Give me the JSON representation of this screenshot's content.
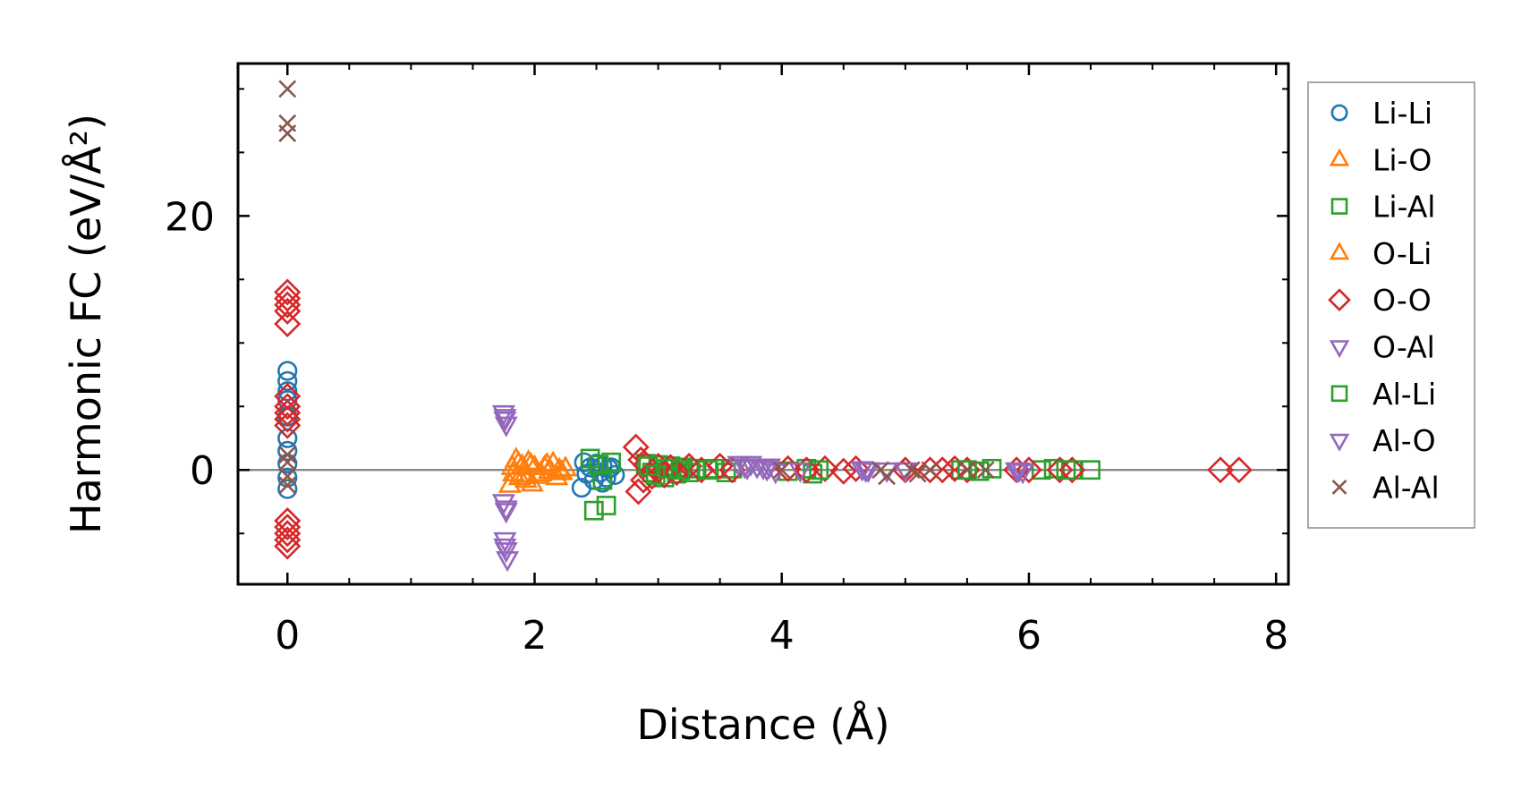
{
  "chart_data": {
    "type": "scatter",
    "xlabel": "Distance (Å)",
    "ylabel": "Harmonic FC (eV/Å²)",
    "xlim": [
      -0.4,
      8.1
    ],
    "ylim": [
      -9,
      32
    ],
    "x_ticks": [
      0,
      2,
      4,
      6,
      8
    ],
    "x_tick_labels": [
      "0",
      "2",
      "4",
      "6",
      "8"
    ],
    "y_ticks": [
      0,
      20
    ],
    "y_tick_labels": [
      "0",
      "20"
    ],
    "x_minor_step": 0.5,
    "y_minor_step": 5,
    "zero_line": true,
    "grid": false,
    "legend_position": "outside-right",
    "series": [
      {
        "name": "Li-Li",
        "marker": "circle",
        "color": "#1f77b4",
        "points": [
          [
            0,
            7.8
          ],
          [
            0,
            7.0
          ],
          [
            0,
            6.2
          ],
          [
            0,
            5.5
          ],
          [
            0,
            4.2
          ],
          [
            0,
            2.5
          ],
          [
            0,
            1.5
          ],
          [
            0,
            0.5
          ],
          [
            0,
            -0.6
          ],
          [
            0,
            -1.5
          ],
          [
            2.38,
            -1.4
          ],
          [
            2.4,
            0.6
          ],
          [
            2.42,
            -0.3
          ],
          [
            2.45,
            0.2
          ],
          [
            2.48,
            -0.8
          ],
          [
            2.5,
            0.5
          ],
          [
            2.53,
            -0.2
          ],
          [
            2.55,
            0.3
          ],
          [
            2.58,
            -0.6
          ],
          [
            2.6,
            0.1
          ],
          [
            2.62,
            0.2
          ],
          [
            2.65,
            -0.4
          ],
          [
            2.55,
            -1.0
          ]
        ]
      },
      {
        "name": "Li-O",
        "marker": "triangle-up",
        "color": "#ff7f0e",
        "points": [
          [
            1.8,
            -1.2
          ],
          [
            1.82,
            0.2
          ],
          [
            1.85,
            0.8
          ],
          [
            1.88,
            -0.6
          ],
          [
            1.9,
            0.3
          ],
          [
            1.92,
            -0.4
          ],
          [
            1.95,
            0.6
          ],
          [
            1.98,
            -1.1
          ],
          [
            2.0,
            0.2
          ],
          [
            2.05,
            -0.3
          ],
          [
            2.1,
            0.4
          ],
          [
            2.15,
            0.5
          ],
          [
            2.18,
            -0.6
          ],
          [
            2.22,
            -0.2
          ],
          [
            2.25,
            0.1
          ]
        ]
      },
      {
        "name": "Li-Al",
        "marker": "square",
        "color": "#2ca02c",
        "points": [
          [
            2.45,
            0.9
          ],
          [
            2.48,
            -3.2
          ],
          [
            2.52,
            0.4
          ],
          [
            2.55,
            -0.8
          ],
          [
            2.58,
            -2.8
          ],
          [
            2.62,
            0.6
          ],
          [
            2.9,
            0.5
          ],
          [
            2.95,
            -0.2
          ],
          [
            3.0,
            0.4
          ],
          [
            3.05,
            -0.6
          ],
          [
            3.1,
            0.3
          ],
          [
            3.15,
            -0.3
          ],
          [
            3.2,
            0.2
          ],
          [
            3.25,
            -0.2
          ],
          [
            3.3,
            0.1
          ],
          [
            3.45,
            0.1
          ],
          [
            3.55,
            -0.2
          ],
          [
            3.6,
            0.1
          ],
          [
            4.05,
            -0.1
          ],
          [
            4.2,
            0.1
          ],
          [
            4.25,
            -0.3
          ],
          [
            5.45,
            0.0
          ],
          [
            5.6,
            -0.1
          ],
          [
            5.7,
            0.1
          ],
          [
            6.1,
            0.0
          ],
          [
            6.2,
            0.1
          ],
          [
            6.35,
            0.0
          ],
          [
            6.5,
            0.0
          ]
        ]
      },
      {
        "name": "O-Li",
        "marker": "triangle-up",
        "color": "#ff7f0e",
        "points": [
          [
            1.83,
            -0.3
          ],
          [
            1.87,
            0.5
          ],
          [
            1.93,
            -0.8
          ],
          [
            1.97,
            0.4
          ],
          [
            2.03,
            -0.5
          ],
          [
            2.08,
            0.2
          ],
          [
            2.12,
            -0.1
          ],
          [
            2.2,
            0.0
          ]
        ]
      },
      {
        "name": "O-O",
        "marker": "diamond",
        "color": "#d62728",
        "points": [
          [
            0,
            14.0
          ],
          [
            0,
            13.5
          ],
          [
            0,
            13.0
          ],
          [
            0,
            12.5
          ],
          [
            0,
            11.5
          ],
          [
            0,
            5.8
          ],
          [
            0,
            5.0
          ],
          [
            0,
            4.5
          ],
          [
            0,
            4.0
          ],
          [
            0,
            3.5
          ],
          [
            0,
            -4.0
          ],
          [
            0,
            -4.5
          ],
          [
            0,
            -5.0
          ],
          [
            0,
            -5.5
          ],
          [
            0,
            -6.0
          ],
          [
            2.82,
            1.8
          ],
          [
            2.84,
            -1.7
          ],
          [
            2.86,
            0.8
          ],
          [
            2.88,
            -0.8
          ],
          [
            2.9,
            0.4
          ],
          [
            2.95,
            -0.5
          ],
          [
            3.0,
            0.3
          ],
          [
            3.05,
            -0.4
          ],
          [
            3.1,
            0.2
          ],
          [
            3.15,
            -0.2
          ],
          [
            3.25,
            0.3
          ],
          [
            3.35,
            0.0
          ],
          [
            3.5,
            0.3
          ],
          [
            3.6,
            0.0
          ],
          [
            4.05,
            0.1
          ],
          [
            4.2,
            0.0
          ],
          [
            4.35,
            0.1
          ],
          [
            4.5,
            -0.1
          ],
          [
            4.6,
            0.1
          ],
          [
            5.0,
            0.0
          ],
          [
            5.2,
            0.0
          ],
          [
            5.3,
            0.0
          ],
          [
            5.4,
            0.1
          ],
          [
            5.5,
            0.0
          ],
          [
            5.9,
            0.0
          ],
          [
            6.0,
            0.0
          ],
          [
            6.25,
            0.0
          ],
          [
            6.35,
            0.0
          ],
          [
            7.55,
            0.0
          ],
          [
            7.7,
            0.0
          ]
        ]
      },
      {
        "name": "O-Al",
        "marker": "triangle-down",
        "color": "#9467bd",
        "points": [
          [
            1.75,
            4.5
          ],
          [
            1.76,
            4.0
          ],
          [
            1.77,
            3.6
          ],
          [
            1.75,
            -2.5
          ],
          [
            1.77,
            -3.2
          ],
          [
            1.76,
            -5.5
          ],
          [
            1.77,
            -6.3
          ],
          [
            1.78,
            -7.0
          ],
          [
            3.65,
            0.5
          ],
          [
            3.7,
            0.3
          ],
          [
            3.75,
            0.5
          ],
          [
            3.8,
            0.3
          ],
          [
            3.85,
            0.2
          ],
          [
            3.9,
            0.3
          ],
          [
            3.95,
            -0.1
          ],
          [
            4.15,
            0.0
          ],
          [
            4.65,
            0.1
          ],
          [
            4.7,
            0.0
          ],
          [
            4.85,
            0.0
          ],
          [
            5.0,
            0.0
          ],
          [
            5.9,
            0.0
          ],
          [
            5.95,
            -0.1
          ]
        ]
      },
      {
        "name": "Al-Li",
        "marker": "square",
        "color": "#2ca02c",
        "points": [
          [
            2.92,
            0.3
          ],
          [
            2.98,
            -0.4
          ],
          [
            3.08,
            0.1
          ],
          [
            3.18,
            0.0
          ],
          [
            3.4,
            0.0
          ],
          [
            4.3,
            0.0
          ],
          [
            5.5,
            0.0
          ],
          [
            6.3,
            0.0
          ]
        ]
      },
      {
        "name": "Al-O",
        "marker": "triangle-down",
        "color": "#9467bd",
        "points": [
          [
            1.76,
            4.2
          ],
          [
            1.77,
            -3.0
          ],
          [
            1.76,
            -6.0
          ],
          [
            3.72,
            0.2
          ],
          [
            3.88,
            0.1
          ],
          [
            4.68,
            0.0
          ],
          [
            5.92,
            0.0
          ]
        ]
      },
      {
        "name": "Al-Al",
        "marker": "x",
        "color": "#8c564b",
        "points": [
          [
            0,
            30.0
          ],
          [
            0,
            27.3
          ],
          [
            0,
            26.5
          ],
          [
            0,
            1.2
          ],
          [
            0,
            0.6
          ],
          [
            0,
            -0.5
          ],
          [
            0,
            -1.2
          ],
          [
            4.0,
            0.0
          ],
          [
            4.8,
            0.0
          ],
          [
            4.85,
            -0.5
          ],
          [
            5.05,
            0.0
          ],
          [
            5.1,
            -0.3
          ],
          [
            5.2,
            0.0
          ],
          [
            5.5,
            0.0
          ],
          [
            5.65,
            0.0
          ]
        ]
      }
    ]
  }
}
